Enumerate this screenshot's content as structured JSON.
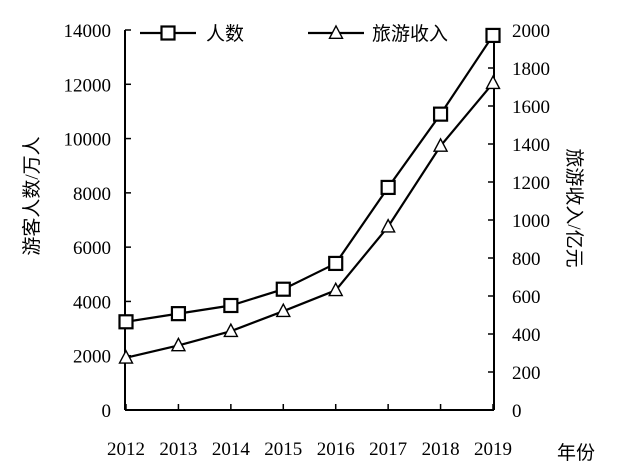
{
  "chart_data": {
    "type": "line",
    "x": [
      "2012",
      "2013",
      "2014",
      "2015",
      "2016",
      "2017",
      "2018",
      "2019"
    ],
    "xlabel": "年份",
    "y_left": {
      "label": "游客人数/万人",
      "ylim": [
        0,
        14000
      ],
      "ticks": [
        0,
        2000,
        4000,
        6000,
        8000,
        10000,
        12000,
        14000
      ]
    },
    "y_right": {
      "label": "旅游收入/亿元",
      "ylim": [
        0,
        2000
      ],
      "ticks": [
        0,
        200,
        400,
        600,
        800,
        1000,
        1200,
        1400,
        1600,
        1800,
        2000
      ]
    },
    "series": [
      {
        "name": "人数",
        "axis": "left",
        "marker": "square",
        "values": [
          3250,
          3550,
          3850,
          4450,
          5400,
          8200,
          10900,
          13800
        ]
      },
      {
        "name": "旅游收入",
        "axis": "right",
        "marker": "triangle",
        "values": [
          275,
          340,
          415,
          520,
          630,
          965,
          1390,
          1720
        ]
      }
    ],
    "legend_position": "top",
    "grid": false
  }
}
